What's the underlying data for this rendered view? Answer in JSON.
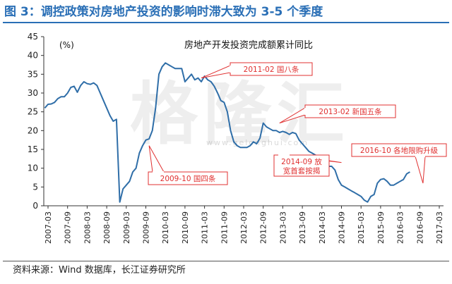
{
  "header": {
    "figure_title": "图 3：调控政策对房地产投资的影响时滞大致为 3-5 个季度"
  },
  "footer": {
    "source": "资料来源：Wind 数据库，长江证券研究所"
  },
  "watermark": {
    "text": "格隆汇",
    "url": "www.gelonghui.com"
  },
  "colors": {
    "title": "#2a6fb6",
    "line": "#2f6ea8",
    "annotation": "#e03030"
  },
  "chart_data": {
    "type": "line",
    "title": "房地产开发投资完成额累计同比",
    "ylabel": "(%)",
    "xlabel": "",
    "ylim": [
      0,
      45
    ],
    "yticks": [
      0,
      5,
      10,
      15,
      20,
      25,
      30,
      35,
      40,
      45
    ],
    "grid": false,
    "xticks": [
      "2007-03",
      "2007-09",
      "2008-03",
      "2008-09",
      "2009-03",
      "2009-09",
      "2010-03",
      "2010-09",
      "2011-03",
      "2011-09",
      "2012-03",
      "2012-09",
      "2013-03",
      "2013-09",
      "2014-03",
      "2014-09",
      "2015-03",
      "2015-09",
      "2016-03",
      "2016-09",
      "2017-03"
    ],
    "x_start": "2007-02",
    "series": [
      {
        "name": "房地产开发投资完成额累计同比",
        "values": [
          26.0,
          27.0,
          27.1,
          27.5,
          28.5,
          29.0,
          29.0,
          30.0,
          31.5,
          31.8,
          30.2,
          32.0,
          33.0,
          32.5,
          32.3,
          32.7,
          32.0,
          30.0,
          28.0,
          26.0,
          24.0,
          22.5,
          23.0,
          1.0,
          4.5,
          5.5,
          6.5,
          9.0,
          10.0,
          14.0,
          16.0,
          17.5,
          17.8,
          20.0,
          26.0,
          35.0,
          37.0,
          38.0,
          37.5,
          37.0,
          36.5,
          36.5,
          36.5,
          33.0,
          34.0,
          35.0,
          33.5,
          34.0,
          33.0,
          34.5,
          33.5,
          33.0,
          31.8,
          30.0,
          28.0,
          27.5,
          25.0,
          20.0,
          17.0,
          16.0,
          15.5,
          15.5,
          15.5,
          16.0,
          17.0,
          16.5,
          18.0,
          22.0,
          21.0,
          20.5,
          20.0,
          20.0,
          19.5,
          19.8,
          19.5,
          19.0,
          19.5,
          19.2,
          17.5,
          16.5,
          15.5,
          14.5,
          14.0,
          13.5,
          13.0,
          12.5,
          11.5,
          10.5,
          10.5,
          9.5,
          7.0,
          5.5,
          5.0,
          4.5,
          4.0,
          3.5,
          3.0,
          2.5,
          1.5,
          1.0,
          2.5,
          3.0,
          6.0,
          7.0,
          7.2,
          6.5,
          5.5,
          5.5,
          6.0,
          6.5,
          7.0,
          8.5,
          9.0
        ]
      }
    ],
    "annotations": [
      {
        "text": "2011-02 国八条",
        "target": {
          "x": "2011-02",
          "y": 34.0
        }
      },
      {
        "text": "2009-10 国四条",
        "target": {
          "x": "2009-10",
          "y": 16.0
        }
      },
      {
        "text": "2013-02 新国五条",
        "target": {
          "x": "2013-02",
          "y": 22.0
        }
      },
      {
        "text": "2014-09 放宽首套按揭",
        "lines": [
          "2014-09 放",
          "宽首套按揭"
        ],
        "target": {
          "x": "2014-09",
          "y": 11.5
        }
      },
      {
        "text": "2016-10 各地限购升级",
        "target": {
          "x": "2016-10",
          "y": 6.0
        }
      }
    ]
  }
}
